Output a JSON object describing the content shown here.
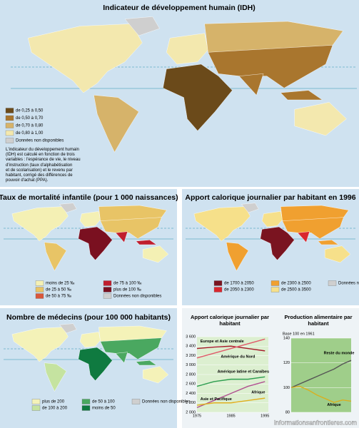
{
  "maps": [
    {
      "title": "Indicateur de développement humain (IDH)",
      "legend": [
        {
          "label": "de 0,25 à 0,50",
          "color": "#6b4a1a"
        },
        {
          "label": "de 0,50 à 0,70",
          "color": "#a9762e"
        },
        {
          "label": "de 0,70 à 0,80",
          "color": "#d6b36a"
        },
        {
          "label": "de 0,80 à 1,00",
          "color": "#f3e8ae"
        },
        {
          "label": "Données non disponibles",
          "color": "#cfcfcf"
        }
      ],
      "note": [
        "L'indicateur du développement humain",
        "(IDH) est calculé en fonction de trois",
        "variables : l'espérance de vie, le niveau",
        "d'instruction (taux d'alphabétisation",
        "et de scolarisation) et le revenu par",
        "habitant, corrigé des différences de",
        "pouvoir d'achat (PPA)."
      ]
    },
    {
      "title": "Taux de mortalité infantile (pour 1 000 naissances)",
      "legend": [
        {
          "label": "moins de 25 ‰",
          "color": "#f4f0b4"
        },
        {
          "label": "de 25 à 50 ‰",
          "color": "#e8c466"
        },
        {
          "label": "de 50 à 75 ‰",
          "color": "#d9573a"
        },
        {
          "label": "de 75 à 100 ‰",
          "color": "#c01e2e"
        },
        {
          "label": "plus de 100 ‰",
          "color": "#7a1020"
        },
        {
          "label": "Données non disponibles",
          "color": "#cfcfcf"
        }
      ]
    },
    {
      "title": "Apport calorique journalier par habitant en 1996",
      "legend": [
        {
          "label": "de 1700 à 2050",
          "color": "#7a1420"
        },
        {
          "label": "de 2050 à 2300",
          "color": "#d9262e"
        },
        {
          "label": "de 2300 à 2500",
          "color": "#f0a030"
        },
        {
          "label": "de 2500 à 3500",
          "color": "#f6e08a"
        },
        {
          "label": "Données non disponibles",
          "color": "#cfcfcf"
        }
      ]
    },
    {
      "title": "Nombre de médecins (pour 100 000 habitants)",
      "legend": [
        {
          "label": "plus de 200",
          "color": "#f4f2b8"
        },
        {
          "label": "de 100 à 200",
          "color": "#c5e3a0"
        },
        {
          "label": "de 50 à 100",
          "color": "#4aa860"
        },
        {
          "label": "moins de 50",
          "color": "#0f7a40"
        },
        {
          "label": "Données non disponibles",
          "color": "#cfcfcf"
        }
      ]
    }
  ],
  "chart_data": [
    {
      "type": "line",
      "title": "Apport calorique journalier par habitant",
      "x": [
        1975,
        1980,
        1985,
        1990,
        1995
      ],
      "xlim": [
        1975,
        1996
      ],
      "xticks": [
        1975,
        1985,
        1995
      ],
      "ylim": [
        2000,
        3600
      ],
      "yticks": [
        {
          "value": 2000,
          "label": "2 000"
        },
        {
          "value": 2200,
          "label": "2 200"
        },
        {
          "value": 2400,
          "label": "2 400"
        },
        {
          "value": 2600,
          "label": "2 600"
        },
        {
          "value": 2800,
          "label": "2 800"
        },
        {
          "value": 3000,
          "label": "3 000"
        },
        {
          "value": 3200,
          "label": "3 200"
        },
        {
          "value": 3400,
          "label": "3 400"
        },
        {
          "value": 3600,
          "label": "3 600"
        }
      ],
      "series": [
        {
          "name": "Europe et Asie centrale",
          "color": "#a61c2a",
          "values": [
            3350,
            3380,
            3400,
            3350,
            3300
          ]
        },
        {
          "name": "Amérique du Nord",
          "color": "#e05a6a",
          "values": [
            3150,
            3250,
            3350,
            3450,
            3550
          ]
        },
        {
          "name": "Amérique latine et Caraïbes",
          "color": "#2e9e50",
          "values": [
            2550,
            2650,
            2700,
            2700,
            2750
          ]
        },
        {
          "name": "Asie et Pacifique",
          "color": "#b05090",
          "values": [
            2100,
            2250,
            2400,
            2550,
            2650
          ]
        },
        {
          "name": "Afrique",
          "color": "#e0b020",
          "values": [
            2150,
            2200,
            2200,
            2250,
            2300
          ]
        }
      ]
    },
    {
      "type": "line",
      "title": "Production alimentaire par habitant",
      "subtitle": "Base 100 en 1961",
      "x": [
        1961,
        1966,
        1971,
        1976,
        1981,
        1986,
        1991,
        1996
      ],
      "xlim": [
        1961,
        1996
      ],
      "ylim": [
        80,
        140
      ],
      "yticks": [
        80,
        100,
        120,
        140
      ],
      "series": [
        {
          "name": "Reste du monde",
          "color": "#555555",
          "values": [
            100,
            103,
            106,
            109,
            112,
            115,
            119,
            122
          ]
        },
        {
          "name": "Afrique",
          "color": "#d8b020",
          "values": [
            100,
            101,
            98,
            94,
            91,
            88,
            90,
            89
          ]
        }
      ]
    }
  ],
  "watermark": "informationsanfrontieres.com"
}
